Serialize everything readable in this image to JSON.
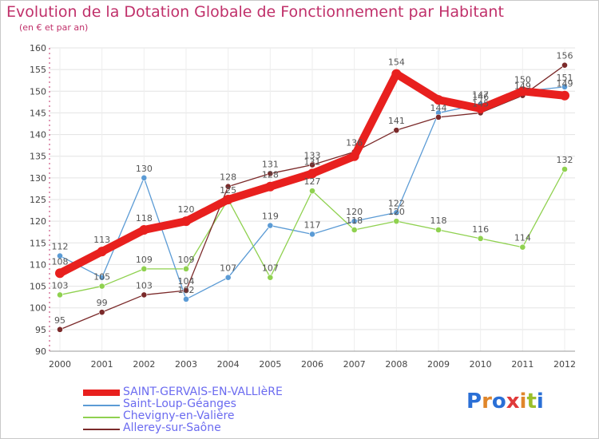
{
  "header": {
    "title": "Evolution de la Dotation Globale de Fonctionnement par Habitant",
    "subtitle": "(en € et par an)"
  },
  "logo": {
    "text": "Proxiti",
    "colors": [
      "#2a6fd6",
      "#e0862a",
      "#2a6fd6",
      "#e03a3a",
      "#e0862a",
      "#9bbf2a",
      "#2a6fd6"
    ]
  },
  "chart_data": {
    "type": "line",
    "title": "Evolution de la Dotation Globale de Fonctionnement par Habitant",
    "subtitle": "(en € et par an)",
    "xlabel": "",
    "ylabel": "",
    "x": [
      "2000",
      "2001",
      "2002",
      "2003",
      "2004",
      "2005",
      "2006",
      "2007",
      "2008",
      "2009",
      "2010",
      "2011",
      "2012"
    ],
    "ylim": [
      90,
      160
    ],
    "yticks": [
      90,
      95,
      100,
      105,
      110,
      115,
      120,
      125,
      130,
      135,
      140,
      145,
      150,
      155,
      160
    ],
    "grid": true,
    "legend_position": "bottom-left",
    "series": [
      {
        "name": "SAINT-GERVAIS-EN-VALLIèRE",
        "color": "#e8201e",
        "emphasis": true,
        "values": [
          108,
          113,
          118,
          120,
          125,
          128,
          131,
          135,
          154,
          148,
          146,
          150,
          149
        ],
        "labels": [
          "108",
          "113",
          "118",
          "120",
          "",
          "128",
          "131",
          "",
          "154",
          "",
          "146",
          "150",
          "149"
        ]
      },
      {
        "name": "Saint-Loup-Géanges",
        "color": "#5b9bd5",
        "values": [
          112,
          107,
          130,
          102,
          107,
          119,
          117,
          120,
          122,
          145,
          147,
          150,
          151
        ],
        "labels": [
          "112",
          "",
          "130",
          "102",
          "107",
          "119",
          "117",
          "120",
          "122",
          "",
          "147",
          "",
          "151"
        ]
      },
      {
        "name": "Chevigny-en-Valière",
        "color": "#8fd14f",
        "values": [
          103,
          105,
          109,
          109,
          125,
          107,
          127,
          118,
          120,
          118,
          116,
          114,
          132
        ],
        "labels": [
          "103",
          "105",
          "109",
          "109",
          "125",
          "107",
          "127",
          "118",
          "120",
          "118",
          "116",
          "114",
          "132"
        ]
      },
      {
        "name": "Allerey-sur-Saône",
        "color": "#7b2a2a",
        "values": [
          95,
          99,
          103,
          104,
          128,
          131,
          133,
          136,
          141,
          144,
          145,
          149,
          156
        ],
        "labels": [
          "95",
          "99",
          "103",
          "104",
          "128",
          "131",
          "133",
          "136",
          "141",
          "144",
          "145",
          "149",
          "156"
        ]
      }
    ],
    "extra_labels": [
      "107",
      "144",
      "146"
    ]
  }
}
